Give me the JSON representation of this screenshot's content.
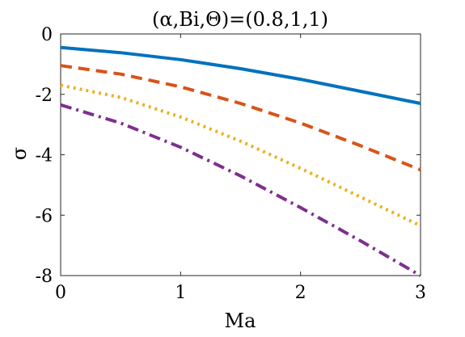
{
  "chart_data": {
    "type": "line",
    "title": "(α,Bi,Θ)=(0.8,1,1)",
    "xlabel": "Ma",
    "ylabel": "σ",
    "xlim": [
      0,
      3
    ],
    "ylim": [
      -8,
      0
    ],
    "xticks": [
      0,
      1,
      2,
      3
    ],
    "yticks": [
      0,
      -2,
      -4,
      -6,
      -8
    ],
    "grid": false,
    "series": [
      {
        "color": "#0072BD",
        "line_style": "solid",
        "x": [
          0,
          0.5,
          1,
          1.5,
          2,
          2.5,
          3
        ],
        "y": [
          -0.45,
          -0.62,
          -0.85,
          -1.15,
          -1.5,
          -1.9,
          -2.3
        ]
      },
      {
        "color": "#D95319",
        "line_style": "dashed",
        "x": [
          0,
          0.5,
          1,
          1.5,
          2,
          2.5,
          3
        ],
        "y": [
          -1.05,
          -1.33,
          -1.75,
          -2.3,
          -2.95,
          -3.7,
          -4.5
        ]
      },
      {
        "color": "#EDB120",
        "line_style": "dotted",
        "x": [
          0,
          0.5,
          1,
          1.5,
          2,
          2.5,
          3
        ],
        "y": [
          -1.7,
          -2.1,
          -2.75,
          -3.55,
          -4.45,
          -5.4,
          -6.35
        ]
      },
      {
        "color": "#7E2F8E",
        "line_style": "dashdot",
        "x": [
          0,
          0.5,
          1,
          1.5,
          2,
          2.5,
          3
        ],
        "y": [
          -2.35,
          -2.95,
          -3.75,
          -4.7,
          -5.75,
          -6.85,
          -8.0
        ]
      }
    ]
  }
}
